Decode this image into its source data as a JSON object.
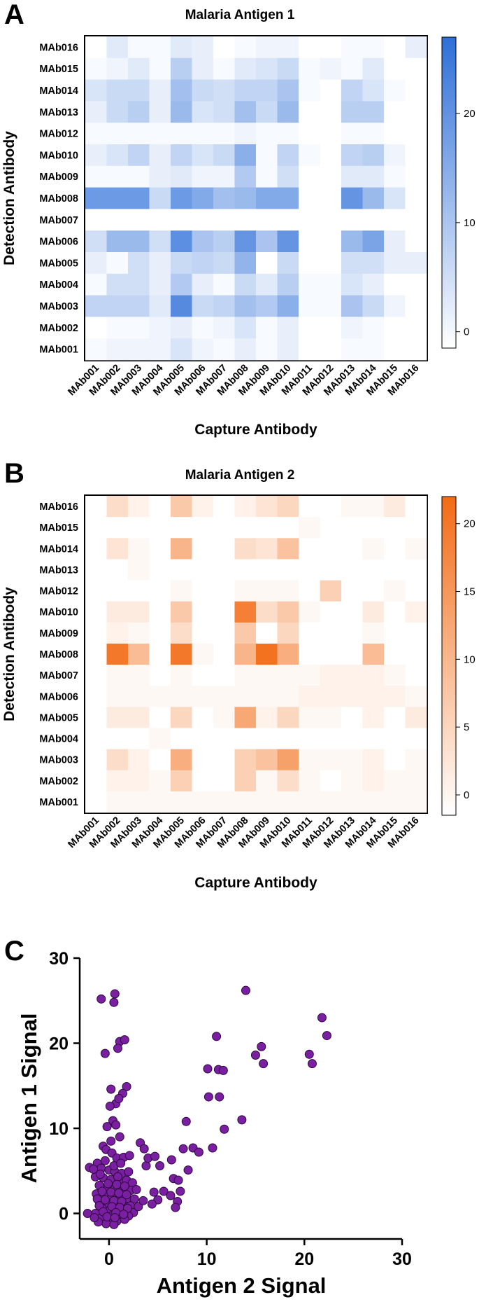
{
  "figure": {
    "panels": [
      {
        "letter": "A",
        "title": "Malaria Antigen 1"
      },
      {
        "letter": "B",
        "title": "Malaria Antigen 2"
      },
      {
        "letter": "C"
      }
    ]
  },
  "chart_data": [
    {
      "type": "heatmap",
      "title": "Malaria Antigen 1",
      "xlabel": "Capture Antibody",
      "ylabel": "Detection Antibody",
      "x_categories": [
        "MAb001",
        "MAb002",
        "MAb003",
        "MAb004",
        "MAb005",
        "MAb006",
        "MAb007",
        "MAb008",
        "MAb009",
        "MAb010",
        "MAb011",
        "MAb012",
        "MAb013",
        "MAb014",
        "MAb015",
        "MAb016"
      ],
      "y_categories": [
        "MAb016",
        "MAb015",
        "MAb014",
        "MAb013",
        "MAb012",
        "MAb010",
        "MAb009",
        "MAb008",
        "MAb007",
        "MAb006",
        "MAb005",
        "MAb004",
        "MAb003",
        "MAb002",
        "MAb001"
      ],
      "values": [
        [
          0,
          4,
          1,
          1,
          4,
          3,
          0,
          1,
          2,
          2,
          0,
          0,
          1,
          1,
          0,
          3
        ],
        [
          1,
          2,
          4,
          1,
          9,
          3,
          1,
          4,
          5,
          7,
          1,
          2,
          1,
          4,
          0,
          0
        ],
        [
          5,
          7,
          7,
          3,
          12,
          7,
          6,
          8,
          8,
          11,
          1,
          0,
          8,
          5,
          1,
          0
        ],
        [
          3,
          7,
          9,
          3,
          13,
          5,
          6,
          12,
          7,
          13,
          0,
          0,
          9,
          9,
          0,
          0
        ],
        [
          1,
          1,
          1,
          1,
          1,
          1,
          1,
          2,
          1,
          1,
          0,
          0,
          1,
          1,
          0,
          0
        ],
        [
          3,
          5,
          8,
          3,
          8,
          5,
          7,
          15,
          1,
          8,
          1,
          0,
          8,
          9,
          2,
          0
        ],
        [
          1,
          1,
          1,
          3,
          4,
          2,
          2,
          10,
          1,
          6,
          0,
          0,
          4,
          4,
          1,
          0
        ],
        [
          19,
          19,
          19,
          7,
          19,
          16,
          12,
          13,
          16,
          16,
          0,
          0,
          20,
          13,
          5,
          0
        ],
        [
          0,
          0,
          0,
          0,
          0,
          0,
          0,
          0,
          0,
          0,
          0,
          0,
          0,
          0,
          0,
          0
        ],
        [
          6,
          13,
          13,
          6,
          21,
          11,
          9,
          20,
          11,
          20,
          0,
          0,
          13,
          17,
          3,
          0
        ],
        [
          3,
          1,
          6,
          3,
          7,
          8,
          7,
          14,
          0,
          7,
          0,
          0,
          6,
          6,
          3,
          3
        ],
        [
          1,
          6,
          6,
          3,
          10,
          3,
          1,
          7,
          4,
          9,
          1,
          1,
          5,
          3,
          0,
          0
        ],
        [
          8,
          8,
          8,
          4,
          22,
          7,
          8,
          12,
          10,
          15,
          1,
          1,
          11,
          7,
          2,
          0
        ],
        [
          0,
          1,
          1,
          2,
          3,
          1,
          2,
          5,
          1,
          3,
          0,
          0,
          2,
          1,
          0,
          0
        ],
        [
          1,
          2,
          2,
          2,
          5,
          2,
          1,
          3,
          1,
          3,
          0,
          0,
          1,
          1,
          0,
          0
        ]
      ],
      "colorbar": {
        "ticks": [
          0,
          10,
          20
        ],
        "min": -1.5,
        "max": 27,
        "color": "#2E6FD8"
      }
    },
    {
      "type": "heatmap",
      "title": "Malaria Antigen 2",
      "xlabel": "Capture Antibody",
      "ylabel": "Detection Antibody",
      "x_categories": [
        "MAb001",
        "MAb002",
        "MAb003",
        "MAb004",
        "MAb005",
        "MAb006",
        "MAb007",
        "MAb008",
        "MAb009",
        "MAb010",
        "MAb011",
        "MAb012",
        "MAb013",
        "MAb014",
        "MAb015",
        "MAb016"
      ],
      "y_categories": [
        "MAb016",
        "MAb015",
        "MAb014",
        "MAb013",
        "MAb012",
        "MAb010",
        "MAb009",
        "MAb008",
        "MAb007",
        "MAb006",
        "MAb005",
        "MAb004",
        "MAb003",
        "MAb002",
        "MAb001"
      ],
      "values": [
        [
          0,
          5,
          2,
          0,
          8,
          2,
          0,
          2,
          4,
          6,
          0,
          0,
          1,
          1,
          3,
          0
        ],
        [
          0,
          0,
          0,
          0,
          0,
          0,
          0,
          0,
          0,
          0,
          1,
          0,
          0,
          0,
          0,
          0
        ],
        [
          0,
          4,
          1,
          0,
          11,
          0,
          0,
          5,
          4,
          9,
          0,
          0,
          0,
          1,
          0,
          1
        ],
        [
          0,
          0,
          1,
          0,
          0,
          0,
          0,
          0,
          0,
          0,
          0,
          0,
          0,
          0,
          0,
          0
        ],
        [
          0,
          0,
          0,
          0,
          1,
          0,
          0,
          1,
          1,
          1,
          0,
          7,
          0,
          0,
          1,
          0
        ],
        [
          0,
          3,
          3,
          0,
          8,
          0,
          0,
          19,
          5,
          8,
          1,
          0,
          0,
          3,
          0,
          2
        ],
        [
          0,
          2,
          1,
          0,
          5,
          0,
          0,
          8,
          0,
          6,
          0,
          0,
          0,
          1,
          0,
          0
        ],
        [
          0,
          20,
          10,
          0,
          20,
          1,
          0,
          11,
          21,
          12,
          0,
          0,
          0,
          10,
          0,
          0
        ],
        [
          0,
          1,
          1,
          0,
          1,
          0,
          0,
          1,
          1,
          1,
          1,
          2,
          2,
          2,
          1,
          0
        ],
        [
          0,
          1,
          1,
          1,
          1,
          1,
          1,
          1,
          1,
          1,
          2,
          2,
          2,
          2,
          2,
          1
        ],
        [
          0,
          3,
          3,
          0,
          6,
          0,
          1,
          13,
          2,
          6,
          1,
          1,
          0,
          2,
          0,
          3
        ],
        [
          0,
          0,
          0,
          1,
          0,
          0,
          0,
          0,
          0,
          0,
          0,
          0,
          0,
          0,
          0,
          0
        ],
        [
          0,
          5,
          2,
          0,
          12,
          0,
          0,
          7,
          9,
          14,
          1,
          1,
          1,
          2,
          0,
          1
        ],
        [
          0,
          2,
          2,
          1,
          7,
          0,
          0,
          7,
          1,
          5,
          1,
          0,
          1,
          2,
          1,
          1
        ],
        [
          0,
          1,
          1,
          1,
          1,
          1,
          1,
          1,
          1,
          1,
          1,
          1,
          1,
          1,
          1,
          1
        ]
      ],
      "colorbar": {
        "ticks": [
          0,
          5,
          10,
          15,
          20
        ],
        "min": -1.5,
        "max": 22,
        "color": "#F26B15"
      }
    },
    {
      "type": "scatter",
      "xlabel": "Antigen 2 Signal",
      "ylabel": "Antigen 1 Signal",
      "xlim": [
        -3,
        30
      ],
      "ylim": [
        -3,
        30
      ],
      "xticks": [
        0,
        10,
        20,
        30
      ],
      "yticks": [
        0,
        10,
        20,
        30
      ],
      "marker_color": "#7B1FA2",
      "points": [
        [
          -0.8,
          25.2
        ],
        [
          0.6,
          25.8
        ],
        [
          0.5,
          24.8
        ],
        [
          -0.4,
          18.8
        ],
        [
          1.1,
          20.2
        ],
        [
          1.6,
          20.4
        ],
        [
          0.9,
          19.4
        ],
        [
          1.8,
          14.9
        ],
        [
          1.4,
          14.1
        ],
        [
          0.2,
          14.6
        ],
        [
          0.7,
          12.9
        ],
        [
          0.1,
          12.6
        ],
        [
          1.0,
          13.5
        ],
        [
          0.4,
          10.9
        ],
        [
          0.7,
          10.4
        ],
        [
          -0.2,
          10.2
        ],
        [
          1.1,
          9.0
        ],
        [
          0.2,
          8.5
        ],
        [
          -0.6,
          7.9
        ],
        [
          -0.3,
          7.5
        ],
        [
          0.3,
          7.1
        ],
        [
          0.8,
          6.5
        ],
        [
          1.5,
          6.6
        ],
        [
          2.1,
          6.8
        ],
        [
          -1.2,
          5.9
        ],
        [
          -2.0,
          5.4
        ],
        [
          -0.8,
          5.3
        ],
        [
          0.0,
          5.1
        ],
        [
          0.6,
          4.9
        ],
        [
          1.3,
          4.7
        ],
        [
          2.0,
          4.9
        ],
        [
          -1.4,
          4.3
        ],
        [
          -0.6,
          4.2
        ],
        [
          0.2,
          4.0
        ],
        [
          1.0,
          3.8
        ],
        [
          1.8,
          3.9
        ],
        [
          2.4,
          3.6
        ],
        [
          -1.0,
          3.3
        ],
        [
          -0.2,
          3.0
        ],
        [
          0.6,
          2.9
        ],
        [
          1.4,
          2.8
        ],
        [
          2.2,
          2.7
        ],
        [
          -1.3,
          2.3
        ],
        [
          -0.5,
          2.1
        ],
        [
          0.3,
          2.0
        ],
        [
          1.1,
          1.9
        ],
        [
          1.9,
          1.8
        ],
        [
          2.6,
          1.7
        ],
        [
          -1.0,
          1.4
        ],
        [
          -0.2,
          1.2
        ],
        [
          0.6,
          1.1
        ],
        [
          1.4,
          1.0
        ],
        [
          2.2,
          0.9
        ],
        [
          -0.7,
          0.6
        ],
        [
          0.1,
          0.4
        ],
        [
          0.9,
          0.3
        ],
        [
          1.7,
          0.2
        ],
        [
          2.5,
          0.1
        ],
        [
          -1.4,
          0.0
        ],
        [
          -0.5,
          -0.1
        ],
        [
          0.4,
          -0.2
        ],
        [
          1.2,
          -0.4
        ],
        [
          2.0,
          -0.3
        ],
        [
          -0.9,
          -0.6
        ],
        [
          0.0,
          -0.8
        ],
        [
          0.8,
          -0.9
        ],
        [
          1.6,
          -0.7
        ],
        [
          -0.3,
          -1.2
        ],
        [
          0.5,
          -1.3
        ],
        [
          -1.1,
          -1.0
        ],
        [
          -2.2,
          0.0
        ],
        [
          3.0,
          0.8
        ],
        [
          -0.4,
          6.2
        ],
        [
          0.5,
          5.6
        ],
        [
          1.2,
          5.9
        ],
        [
          -1.6,
          5.2
        ],
        [
          -0.9,
          4.6
        ],
        [
          0.9,
          4.3
        ],
        [
          -0.1,
          3.5
        ],
        [
          0.8,
          3.4
        ],
        [
          1.6,
          3.2
        ],
        [
          -0.7,
          2.6
        ],
        [
          0.2,
          2.5
        ],
        [
          1.0,
          2.4
        ],
        [
          1.8,
          2.2
        ],
        [
          -1.2,
          1.7
        ],
        [
          -0.4,
          1.6
        ],
        [
          0.5,
          1.5
        ],
        [
          1.3,
          1.4
        ],
        [
          -1.0,
          0.9
        ],
        [
          0.3,
          0.8
        ],
        [
          1.1,
          0.7
        ],
        [
          1.9,
          0.6
        ],
        [
          -0.6,
          0.2
        ],
        [
          0.7,
          0.1
        ],
        [
          1.5,
          -0.1
        ],
        [
          -0.2,
          -0.4
        ],
        [
          0.6,
          -0.5
        ],
        [
          -1.5,
          -0.5
        ],
        [
          2.8,
          2.8
        ],
        [
          3.5,
          1.5
        ],
        [
          3.2,
          8.3
        ],
        [
          3.8,
          5.6
        ],
        [
          3.6,
          7.6
        ],
        [
          4.0,
          6.5
        ],
        [
          4.7,
          6.7
        ],
        [
          5.2,
          5.6
        ],
        [
          4.6,
          2.5
        ],
        [
          5.0,
          1.6
        ],
        [
          5.6,
          2.6
        ],
        [
          4.4,
          1.1
        ],
        [
          6.4,
          6.3
        ],
        [
          6.6,
          4.1
        ],
        [
          7.1,
          3.9
        ],
        [
          6.3,
          2.1
        ],
        [
          7.0,
          1.4
        ],
        [
          6.8,
          0.7
        ],
        [
          7.6,
          7.6
        ],
        [
          8.1,
          5.1
        ],
        [
          7.3,
          2.6
        ],
        [
          7.9,
          10.8
        ],
        [
          8.6,
          7.7
        ],
        [
          9.2,
          7.2
        ],
        [
          10.1,
          17.0
        ],
        [
          10.2,
          13.7
        ],
        [
          10.6,
          7.7
        ],
        [
          11.0,
          20.8
        ],
        [
          11.2,
          16.9
        ],
        [
          11.7,
          16.8
        ],
        [
          11.3,
          13.7
        ],
        [
          11.8,
          9.9
        ],
        [
          13.6,
          11.0
        ],
        [
          14.0,
          26.2
        ],
        [
          15.0,
          18.6
        ],
        [
          15.6,
          19.6
        ],
        [
          15.8,
          17.6
        ],
        [
          20.5,
          18.7
        ],
        [
          20.8,
          17.6
        ],
        [
          21.8,
          23.0
        ],
        [
          22.3,
          20.9
        ]
      ]
    }
  ]
}
